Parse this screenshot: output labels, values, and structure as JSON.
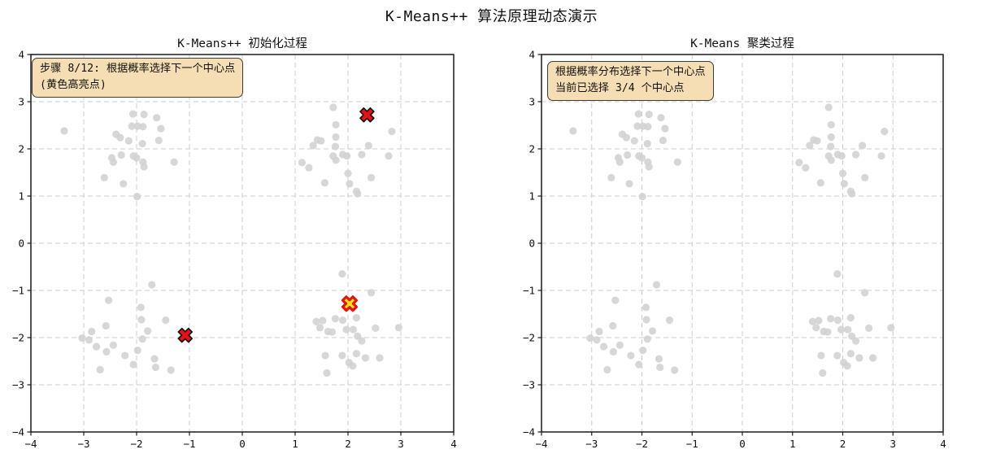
{
  "figure": {
    "title": "K-Means++ 算法原理动态演示",
    "background": "#ffffff"
  },
  "chart_data": {
    "type": "scatter",
    "xlim": [
      -4,
      4
    ],
    "ylim": [
      -4,
      4
    ],
    "xticks": [
      -4,
      -3,
      -2,
      -1,
      0,
      1,
      2,
      3,
      4
    ],
    "yticks": [
      -4,
      -3,
      -2,
      -1,
      0,
      1,
      2,
      3,
      4
    ],
    "grid": {
      "style": "dashed",
      "color": "#cdcdcd"
    },
    "colors": {
      "points": "#d3d3d3",
      "center": "#e81010",
      "center_edge": "#111111",
      "candidate": "#ffec00",
      "candidate_edge": "#e81010",
      "annotation_bg": "#f5deb3",
      "annotation_border": "#3c3c34",
      "spine": "#1a1a1a"
    },
    "data_points": [
      [
        -3.37,
        2.38
      ],
      [
        -2.07,
        2.74
      ],
      [
        -1.86,
        2.73
      ],
      [
        -1.62,
        2.66
      ],
      [
        -2.09,
        2.48
      ],
      [
        -1.98,
        2.48
      ],
      [
        -1.88,
        2.47
      ],
      [
        -1.54,
        2.43
      ],
      [
        -2.39,
        2.31
      ],
      [
        -2.31,
        2.24
      ],
      [
        -2.15,
        2.17
      ],
      [
        -1.89,
        2.11
      ],
      [
        -1.58,
        2.18
      ],
      [
        -2.29,
        1.87
      ],
      [
        -2.47,
        1.81
      ],
      [
        -2.44,
        1.72
      ],
      [
        -2.06,
        1.85
      ],
      [
        -2.0,
        1.81
      ],
      [
        -1.88,
        1.72
      ],
      [
        -1.86,
        1.62
      ],
      [
        -1.29,
        1.72
      ],
      [
        -2.61,
        1.39
      ],
      [
        -2.25,
        1.26
      ],
      [
        -1.99,
        0.99
      ],
      [
        1.72,
        2.88
      ],
      [
        1.77,
        2.51
      ],
      [
        1.42,
        2.19
      ],
      [
        1.49,
        2.17
      ],
      [
        1.34,
        2.07
      ],
      [
        1.77,
        2.25
      ],
      [
        1.76,
        2.05
      ],
      [
        2.83,
        2.37
      ],
      [
        2.39,
        2.07
      ],
      [
        1.72,
        1.85
      ],
      [
        1.77,
        1.76
      ],
      [
        1.9,
        1.88
      ],
      [
        1.98,
        1.85
      ],
      [
        2.26,
        1.88
      ],
      [
        2.77,
        1.85
      ],
      [
        1.13,
        1.71
      ],
      [
        1.26,
        1.6
      ],
      [
        2.0,
        1.48
      ],
      [
        2.03,
        1.26
      ],
      [
        2.44,
        1.39
      ],
      [
        1.56,
        1.28
      ],
      [
        2.16,
        1.1
      ],
      [
        2.18,
        1.05
      ],
      [
        -1.71,
        -0.88
      ],
      [
        -2.53,
        -1.21
      ],
      [
        -1.92,
        -1.36
      ],
      [
        -1.91,
        -1.62
      ],
      [
        -1.45,
        -1.63
      ],
      [
        -2.58,
        -1.75
      ],
      [
        -2.85,
        -1.87
      ],
      [
        -1.79,
        -1.86
      ],
      [
        -3.03,
        -2.01
      ],
      [
        -2.9,
        -2.05
      ],
      [
        -1.89,
        -2.03
      ],
      [
        -2.76,
        -2.19
      ],
      [
        -2.44,
        -2.16
      ],
      [
        -2.57,
        -2.3
      ],
      [
        -1.98,
        -2.27
      ],
      [
        -2.22,
        -2.38
      ],
      [
        -2.06,
        -2.57
      ],
      [
        -1.66,
        -2.45
      ],
      [
        -1.64,
        -2.63
      ],
      [
        -2.69,
        -2.68
      ],
      [
        -1.35,
        -2.69
      ],
      [
        1.89,
        -0.65
      ],
      [
        2.44,
        -1.05
      ],
      [
        1.4,
        -1.66
      ],
      [
        1.52,
        -1.64
      ],
      [
        1.47,
        -1.79
      ],
      [
        1.76,
        -1.6
      ],
      [
        1.9,
        -1.63
      ],
      [
        2.16,
        -1.58
      ],
      [
        1.62,
        -1.87
      ],
      [
        1.7,
        -1.88
      ],
      [
        1.97,
        -1.83
      ],
      [
        2.1,
        -1.83
      ],
      [
        2.52,
        -1.8
      ],
      [
        2.96,
        -1.79
      ],
      [
        2.26,
        -2.07
      ],
      [
        2.18,
        -1.97
      ],
      [
        1.57,
        -2.38
      ],
      [
        1.89,
        -2.38
      ],
      [
        2.16,
        -2.34
      ],
      [
        2.33,
        -2.43
      ],
      [
        2.6,
        -2.43
      ],
      [
        2.02,
        -2.53
      ],
      [
        2.09,
        -2.6
      ],
      [
        1.6,
        -2.75
      ]
    ],
    "subplots": [
      {
        "title": "K-Means++ 初始化过程",
        "annotation_line1": "步骤 8/12: 根据概率选择下一个中心点",
        "annotation_line2": "(黄色高亮点)",
        "selected_centers": [
          [
            2.36,
            2.72
          ],
          [
            -1.08,
            -1.95
          ]
        ],
        "candidate_centers": [
          [
            2.03,
            -1.28
          ]
        ]
      },
      {
        "title": "K-Means 聚类过程",
        "annotation_line1": "根据概率分布选择下一个中心点",
        "annotation_line2": "当前已选择 3/4 个中心点",
        "selected_centers": [],
        "candidate_centers": []
      }
    ]
  }
}
